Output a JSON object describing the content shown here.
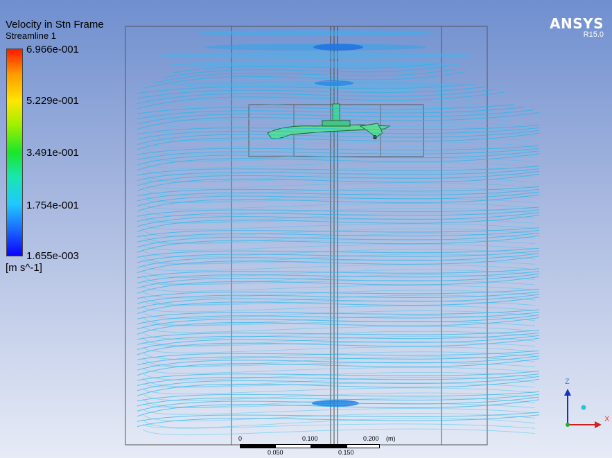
{
  "legend": {
    "title": "Velocity in Stn Frame",
    "subtitle": "Streamline 1",
    "ticks": [
      "6.966e-001",
      "5.229e-001",
      "3.491e-001",
      "1.754e-001",
      "1.655e-003"
    ],
    "units": "[m s^-1]"
  },
  "branding": {
    "product": "ANSYS",
    "version": "R15.0"
  },
  "scale_bar": {
    "top_labels": [
      "0",
      "0.100",
      "0.200",
      "(m)"
    ],
    "bottom_labels": [
      "0.050",
      "0.150"
    ]
  },
  "axes": {
    "z": "Z",
    "x": "X"
  },
  "colors": {
    "streamline": "#22b6ea",
    "impeller": "#4fd28a",
    "accent": "#1f7fd1"
  }
}
